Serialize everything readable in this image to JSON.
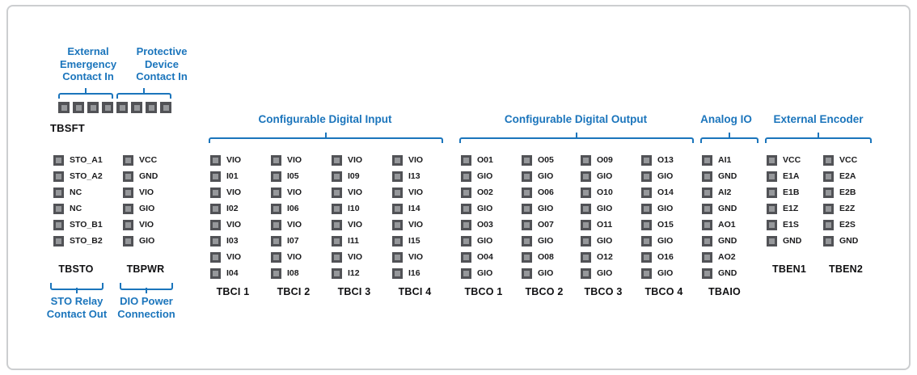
{
  "colors": {
    "accent": "#1b75bc",
    "pin_outer": "#515256",
    "pin_inner": "#96989b"
  },
  "safety": {
    "emergency_lines": [
      "External",
      "Emergency",
      "Contact In"
    ],
    "protective_lines": [
      "Protective",
      "Device",
      "Contact In"
    ],
    "tbsft_label": "TBSFT",
    "tbsft_pin_count": 8
  },
  "group_headers": [
    {
      "id": "digital-input",
      "text": "Configurable Digital Input"
    },
    {
      "id": "digital-output",
      "text": "Configurable Digital Output"
    },
    {
      "id": "analog-io",
      "text": "Analog IO"
    },
    {
      "id": "external-encoder",
      "text": "External Encoder"
    }
  ],
  "blocks": [
    {
      "id": "tbsto",
      "label": "TBSTO",
      "pins": [
        "STO_A1",
        "STO_A2",
        "NC",
        "NC",
        "STO_B1",
        "STO_B2"
      ]
    },
    {
      "id": "tbpwr",
      "label": "TBPWR",
      "pins": [
        "VCC",
        "GND",
        "VIO",
        "GIO",
        "VIO",
        "GIO"
      ]
    },
    {
      "id": "tbci1",
      "label": "TBCI 1",
      "pins": [
        "VIO",
        "I01",
        "VIO",
        "I02",
        "VIO",
        "I03",
        "VIO",
        "I04"
      ]
    },
    {
      "id": "tbci2",
      "label": "TBCI 2",
      "pins": [
        "VIO",
        "I05",
        "VIO",
        "I06",
        "VIO",
        "I07",
        "VIO",
        "I08"
      ]
    },
    {
      "id": "tbci3",
      "label": "TBCI 3",
      "pins": [
        "VIO",
        "I09",
        "VIO",
        "I10",
        "VIO",
        "I11",
        "VIO",
        "I12"
      ]
    },
    {
      "id": "tbci4",
      "label": "TBCI 4",
      "pins": [
        "VIO",
        "I13",
        "VIO",
        "I14",
        "VIO",
        "I15",
        "VIO",
        "I16"
      ]
    },
    {
      "id": "tbco1",
      "label": "TBCO 1",
      "pins": [
        "O01",
        "GIO",
        "O02",
        "GIO",
        "O03",
        "GIO",
        "O04",
        "GIO"
      ]
    },
    {
      "id": "tbco2",
      "label": "TBCO 2",
      "pins": [
        "O05",
        "GIO",
        "O06",
        "GIO",
        "O07",
        "GIO",
        "O08",
        "GIO"
      ]
    },
    {
      "id": "tbco3",
      "label": "TBCO 3",
      "pins": [
        "O09",
        "GIO",
        "O10",
        "GIO",
        "O11",
        "GIO",
        "O12",
        "GIO"
      ]
    },
    {
      "id": "tbco4",
      "label": "TBCO 4",
      "pins": [
        "O13",
        "GIO",
        "O14",
        "GIO",
        "O15",
        "GIO",
        "O16",
        "GIO"
      ]
    },
    {
      "id": "tbaio",
      "label": "TBAIO",
      "pins": [
        "AI1",
        "GND",
        "AI2",
        "GND",
        "AO1",
        "GND",
        "AO2",
        "GND"
      ]
    },
    {
      "id": "tben1",
      "label": "TBEN1",
      "pins": [
        "VCC",
        "E1A",
        "E1B",
        "E1Z",
        "E1S",
        "GND"
      ]
    },
    {
      "id": "tben2",
      "label": "TBEN2",
      "pins": [
        "VCC",
        "E2A",
        "E2B",
        "E2Z",
        "E2S",
        "GND"
      ]
    }
  ],
  "callouts": {
    "sto_lines": [
      "STO Relay",
      "Contact Out"
    ],
    "dio_lines": [
      "DIO Power",
      "Connection"
    ]
  }
}
